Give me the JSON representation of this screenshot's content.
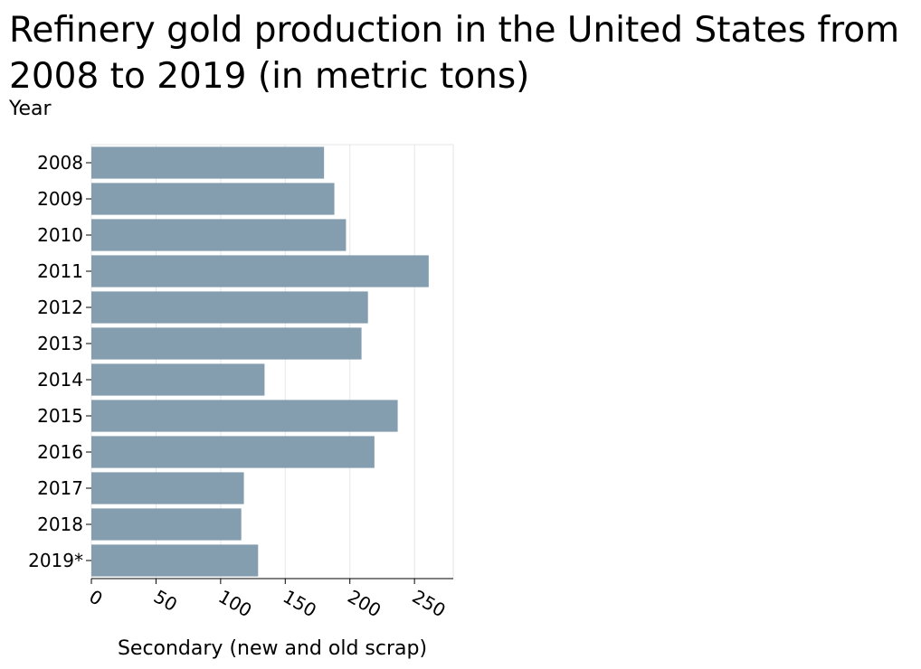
{
  "chart_data": {
    "type": "bar",
    "orientation": "horizontal",
    "title": "Refinery gold production in the United States from 2008 to 2019 (in metric tons)",
    "xlabel": "Secondary (new and old scrap)",
    "ylabel": "Year",
    "categories": [
      "2008",
      "2009",
      "2010",
      "2011",
      "2012",
      "2013",
      "2014",
      "2015",
      "2016",
      "2017",
      "2018",
      "2019*"
    ],
    "values": [
      180,
      188,
      197,
      261,
      214,
      209,
      134,
      237,
      219,
      118,
      116,
      129
    ],
    "xlim": [
      0,
      280
    ],
    "xticks": [
      0,
      50,
      100,
      150,
      200,
      250
    ],
    "grid": "vertical",
    "bar_color": "#849eb0",
    "grid_color": "#e6e6e6"
  }
}
